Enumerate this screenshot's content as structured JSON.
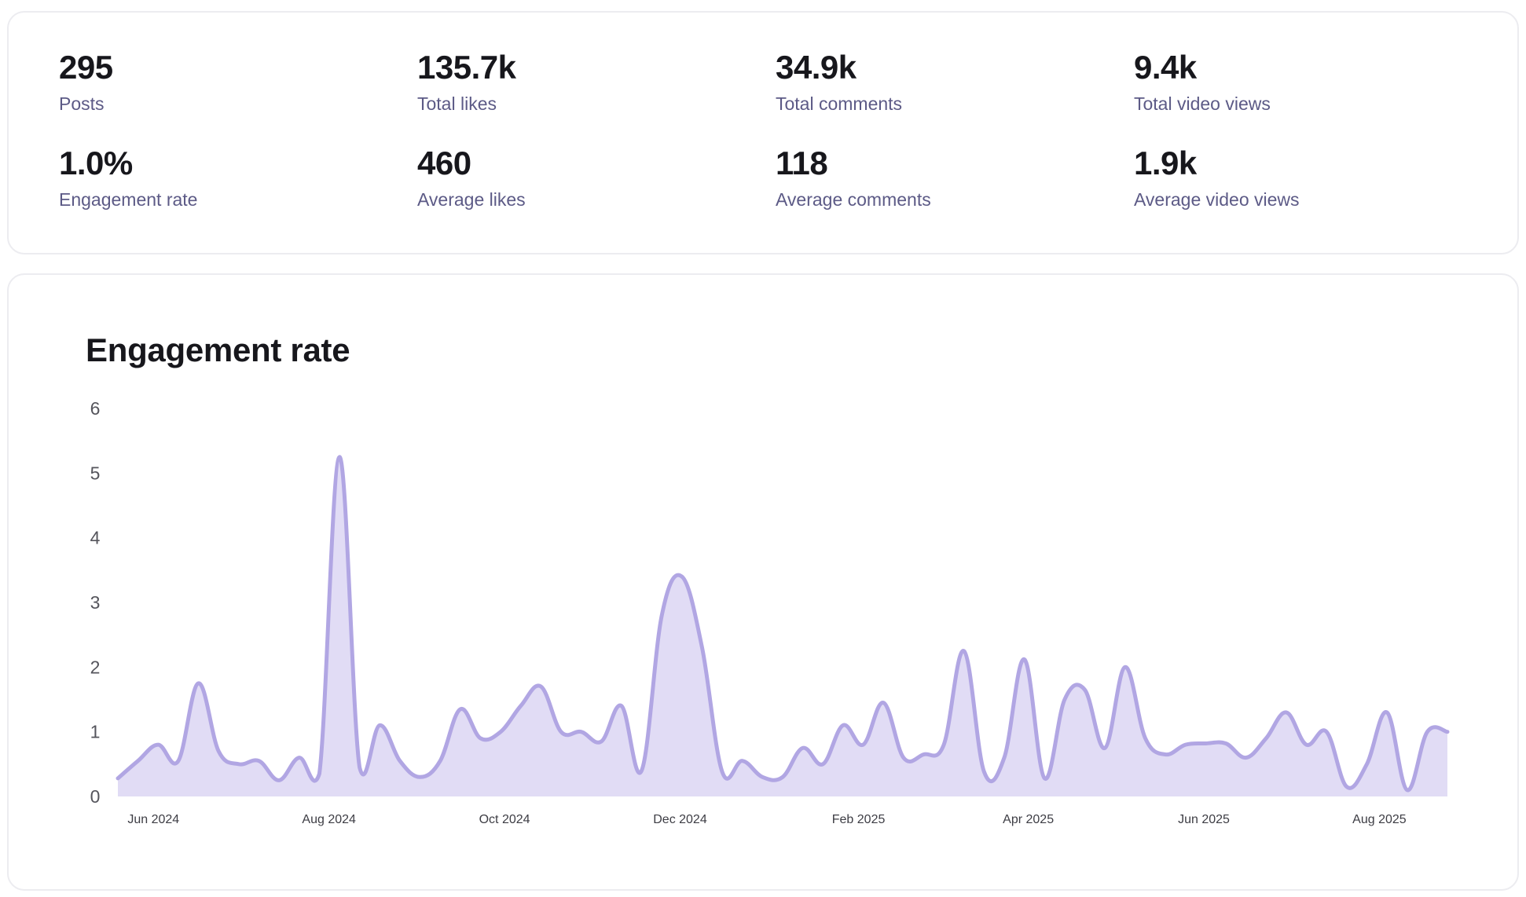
{
  "stats": [
    {
      "value": "295",
      "label": "Posts"
    },
    {
      "value": "135.7k",
      "label": "Total likes"
    },
    {
      "value": "34.9k",
      "label": "Total comments"
    },
    {
      "value": "9.4k",
      "label": "Total video views"
    },
    {
      "value": "1.0%",
      "label": "Engagement rate"
    },
    {
      "value": "460",
      "label": "Average likes"
    },
    {
      "value": "118",
      "label": "Average comments"
    },
    {
      "value": "1.9k",
      "label": "Average video views"
    }
  ],
  "chart_title": "Engagement rate",
  "colors": {
    "line": "#b1a6e3",
    "area": "#e1dcf5"
  },
  "chart_data": {
    "type": "area",
    "title": "Engagement rate",
    "xlabel": "",
    "ylabel": "",
    "ylim": [
      0,
      6
    ],
    "yticks": [
      "0",
      "1",
      "2",
      "3",
      "4",
      "5",
      "6"
    ],
    "xticks": [
      {
        "label": "Jun 2024",
        "date": "2024-06-01"
      },
      {
        "label": "Aug 2024",
        "date": "2024-08-01"
      },
      {
        "label": "Oct 2024",
        "date": "2024-10-01"
      },
      {
        "label": "Dec 2024",
        "date": "2024-12-01"
      },
      {
        "label": "Feb 2025",
        "date": "2025-02-01"
      },
      {
        "label": "Apr 2025",
        "date": "2025-04-01"
      },
      {
        "label": "Jun 2025",
        "date": "2025-06-01"
      },
      {
        "label": "Aug 2025",
        "date": "2025-08-01"
      }
    ],
    "grid": false,
    "legend": "none",
    "x": [
      "2024-05-21",
      "2024-05-28",
      "2024-06-04",
      "2024-06-11",
      "2024-06-18",
      "2024-06-25",
      "2024-07-02",
      "2024-07-09",
      "2024-07-16",
      "2024-07-23",
      "2024-07-30",
      "2024-08-06",
      "2024-08-13",
      "2024-08-20",
      "2024-08-27",
      "2024-09-03",
      "2024-09-10",
      "2024-09-17",
      "2024-09-24",
      "2024-10-01",
      "2024-10-08",
      "2024-10-15",
      "2024-10-22",
      "2024-10-29",
      "2024-11-05",
      "2024-11-12",
      "2024-11-19",
      "2024-11-26",
      "2024-12-03",
      "2024-12-10",
      "2024-12-17",
      "2024-12-24",
      "2024-12-31",
      "2025-01-07",
      "2025-01-14",
      "2025-01-21",
      "2025-01-28",
      "2025-02-04",
      "2025-02-11",
      "2025-02-18",
      "2025-02-25",
      "2025-03-04",
      "2025-03-11",
      "2025-03-18",
      "2025-03-25",
      "2025-04-01",
      "2025-04-08",
      "2025-04-15",
      "2025-04-22",
      "2025-04-29",
      "2025-05-06",
      "2025-05-13",
      "2025-05-20",
      "2025-05-27",
      "2025-06-03",
      "2025-06-10",
      "2025-06-17",
      "2025-06-24",
      "2025-07-01",
      "2025-07-08",
      "2025-07-15",
      "2025-07-22",
      "2025-07-29",
      "2025-08-05",
      "2025-08-12",
      "2025-08-19",
      "2025-08-26"
    ],
    "series": [
      {
        "values": [
          0.28,
          0.55,
          0.8,
          0.55,
          1.75,
          0.7,
          0.5,
          0.55,
          0.25,
          0.6,
          0.35,
          5.25,
          0.45,
          1.1,
          0.55,
          0.3,
          0.55,
          1.35,
          0.9,
          1.0,
          1.4,
          1.7,
          1.0,
          1.0,
          0.85,
          1.4,
          0.4,
          2.8,
          3.4,
          2.3,
          0.38,
          0.55,
          0.3,
          0.3,
          0.75,
          0.5,
          1.1,
          0.8,
          1.45,
          0.6,
          0.65,
          0.8,
          2.25,
          0.38,
          0.6,
          2.12,
          0.28,
          1.5,
          1.65,
          0.75,
          2.0,
          0.9,
          0.65,
          0.8,
          0.82,
          0.82,
          0.6,
          0.9,
          1.3,
          0.8,
          1.0,
          0.15,
          0.5,
          1.3,
          0.1,
          1.0,
          1.0
        ]
      }
    ]
  }
}
